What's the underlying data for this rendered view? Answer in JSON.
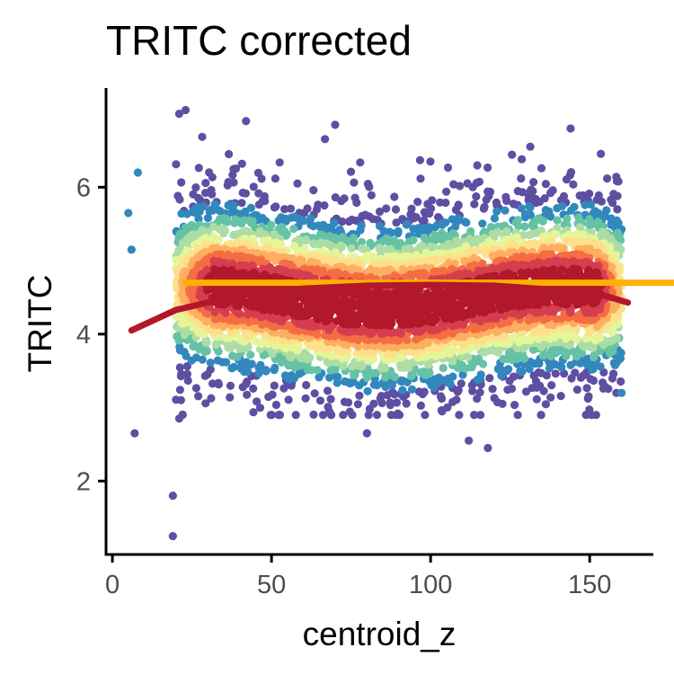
{
  "chart_data": {
    "type": "scatter",
    "title": "TRITC corrected",
    "xlabel": "centroid_z",
    "ylabel": "TRITC",
    "xlim": [
      -2,
      170
    ],
    "ylim": [
      1.0,
      7.35
    ],
    "x_ticks": [
      0,
      50,
      100,
      150
    ],
    "y_ticks": [
      2,
      4,
      6
    ],
    "grid": false,
    "legend": "none",
    "point_color_scale": "Spectral (density: red = dense, purple = sparse)",
    "colors": {
      "dense": "#b2182b",
      "sparse": "#5e4fa2",
      "hline": "#ffb000",
      "trend": "#b2182b",
      "axis": "#000000"
    },
    "point_count_approx": 5000,
    "point_cloud": {
      "x_range": [
        20,
        160
      ],
      "core_center_y": 4.5,
      "spread_y": [
        3.5,
        6.2
      ]
    },
    "outliers": [
      {
        "x": 7,
        "y": 2.65
      },
      {
        "x": 19,
        "y": 1.8
      },
      {
        "x": 19,
        "y": 1.25
      },
      {
        "x": 5,
        "y": 5.65
      },
      {
        "x": 8,
        "y": 6.2
      },
      {
        "x": 6,
        "y": 5.15
      },
      {
        "x": 21,
        "y": 7.0
      },
      {
        "x": 23,
        "y": 7.05
      },
      {
        "x": 42,
        "y": 6.9
      },
      {
        "x": 70,
        "y": 6.85
      },
      {
        "x": 144,
        "y": 6.8
      },
      {
        "x": 118,
        "y": 2.45
      },
      {
        "x": 112,
        "y": 2.55
      },
      {
        "x": 80,
        "y": 2.65
      },
      {
        "x": 21,
        "y": 2.85
      },
      {
        "x": 160,
        "y": 3.2
      }
    ],
    "reference_line": {
      "y": 4.7
    },
    "trend_line": {
      "x": [
        6,
        20,
        40,
        60,
        80,
        100,
        120,
        140,
        155,
        162
      ],
      "y": [
        4.05,
        4.33,
        4.53,
        4.62,
        4.66,
        4.67,
        4.66,
        4.6,
        4.52,
        4.43
      ]
    }
  }
}
